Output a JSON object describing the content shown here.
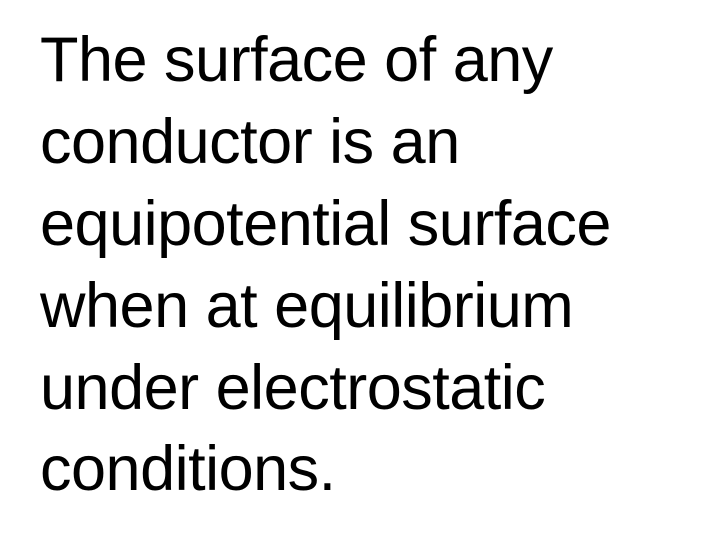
{
  "slide": {
    "text": "The surface of any conductor is an equipotential surface when at equilibrium under electrostatic conditions.",
    "text_color": "#000000",
    "background_color": "#ffffff",
    "font_size": 63,
    "font_family": "Arial",
    "line_height": 1.3
  }
}
